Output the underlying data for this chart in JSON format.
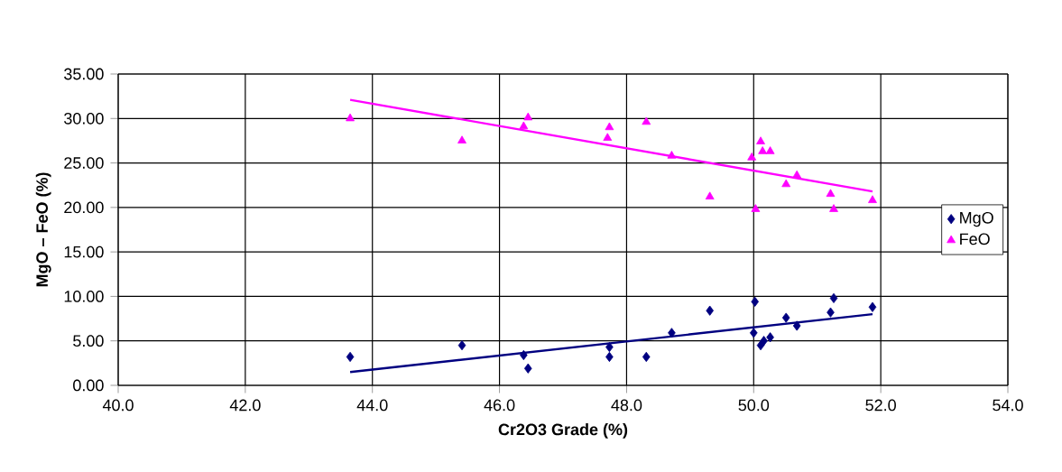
{
  "chart_data": {
    "type": "scatter",
    "xlabel": "Cr2O3 Grade (%)",
    "ylabel": "MgO – FeO (%)",
    "xlim": [
      40,
      54
    ],
    "ylim": [
      0,
      35
    ],
    "xticks": [
      {
        "value": 40,
        "label": "40.0"
      },
      {
        "value": 42,
        "label": "42.0"
      },
      {
        "value": 44,
        "label": "44.0"
      },
      {
        "value": 46,
        "label": "46.0"
      },
      {
        "value": 48,
        "label": "48.0"
      },
      {
        "value": 50,
        "label": "50.0"
      },
      {
        "value": 52,
        "label": "52.0"
      },
      {
        "value": 54,
        "label": "54.0"
      }
    ],
    "yticks": [
      {
        "value": 0,
        "label": "0.00"
      },
      {
        "value": 5,
        "label": "5.00"
      },
      {
        "value": 10,
        "label": "10.00"
      },
      {
        "value": 15,
        "label": "15.00"
      },
      {
        "value": 20,
        "label": "20.00"
      },
      {
        "value": 25,
        "label": "25.00"
      },
      {
        "value": 30,
        "label": "30.00"
      },
      {
        "value": 35,
        "label": "35.00"
      }
    ],
    "grid": true,
    "legend": "right",
    "series": [
      {
        "name": "MgO",
        "color": "#000080",
        "marker": "diamond",
        "x": [
          43.65,
          45.41,
          46.38,
          46.45,
          47.73,
          47.73,
          48.31,
          48.71,
          49.31,
          50.02,
          50.0,
          50.11,
          50.16,
          50.26,
          50.51,
          50.68,
          51.21,
          51.26,
          51.87
        ],
        "values": [
          3.2,
          4.5,
          3.4,
          1.9,
          4.3,
          3.2,
          3.2,
          5.9,
          8.4,
          9.4,
          5.9,
          4.5,
          5.0,
          5.4,
          7.6,
          6.7,
          8.2,
          9.8,
          8.8
        ]
      },
      {
        "name": "FeO",
        "color": "#ff00ff",
        "marker": "triangle",
        "x": [
          43.65,
          45.41,
          46.38,
          46.45,
          47.73,
          47.7,
          48.31,
          48.71,
          49.31,
          49.97,
          50.03,
          50.11,
          50.14,
          50.26,
          50.51,
          50.68,
          51.21,
          51.26,
          51.87
        ],
        "values": [
          30.0,
          27.5,
          29.1,
          30.1,
          29.0,
          27.8,
          29.6,
          25.8,
          21.2,
          25.6,
          19.8,
          27.4,
          26.3,
          26.3,
          22.6,
          23.6,
          21.5,
          19.8,
          20.8
        ]
      },
      {
        "type": "line",
        "color": "#000080",
        "marker": "none",
        "x": [
          43.65,
          51.87
        ],
        "values": [
          1.5,
          8.0
        ]
      },
      {
        "type": "line",
        "color": "#ff00ff",
        "marker": "none",
        "x": [
          43.65,
          51.87
        ],
        "values": [
          32.1,
          21.8
        ]
      }
    ]
  }
}
